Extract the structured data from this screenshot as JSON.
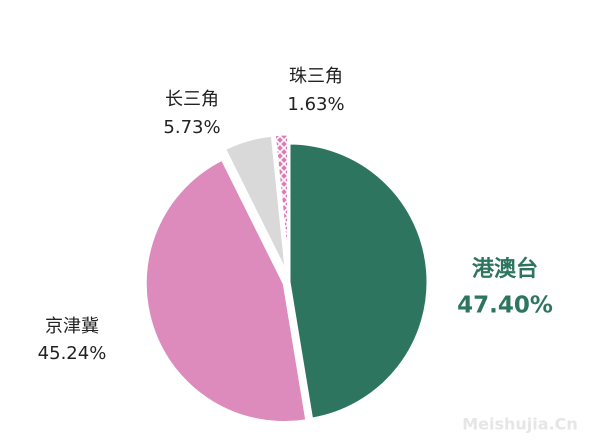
{
  "chart_data": {
    "type": "pie",
    "categories": [
      "港澳台",
      "京津冀",
      "长三角",
      "珠三角"
    ],
    "values": [
      47.4,
      45.24,
      5.73,
      1.63
    ],
    "value_labels": [
      "47.40%",
      "45.24%",
      "5.73%",
      "1.63%"
    ],
    "colors": [
      "#2e7560",
      "#dd8abd",
      "#d9d9d9",
      "#e07ab5"
    ],
    "hatch": [
      false,
      false,
      false,
      true
    ],
    "watermark": "Meishujia.Cn"
  }
}
